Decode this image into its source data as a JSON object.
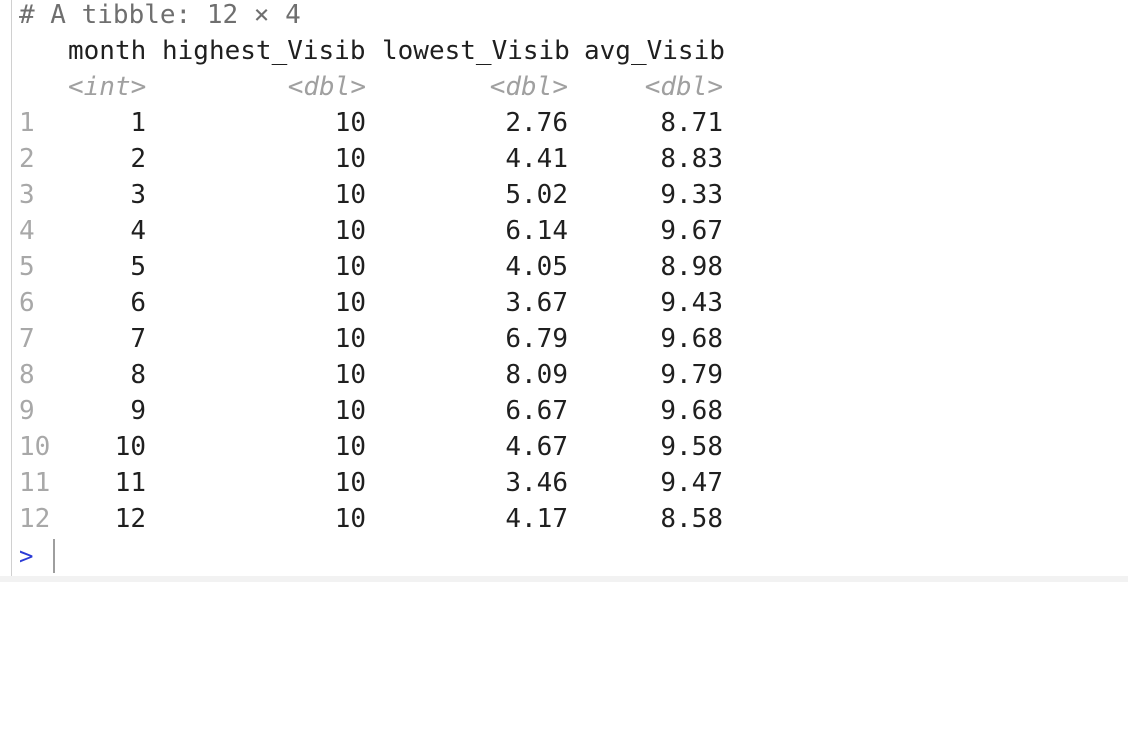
{
  "console": {
    "comment": "# A tibble: 12 × 4",
    "headers": {
      "month": "month",
      "highest": "highest_Visib",
      "lowest": "lowest_Visib",
      "avg": "avg_Visib"
    },
    "types": {
      "month": "<int>",
      "highest": "<dbl>",
      "lowest": "<dbl>",
      "avg": "<dbl>"
    },
    "rows": [
      {
        "n": "1",
        "month": "1",
        "highest": "10",
        "lowest": "2.76",
        "avg": "8.71"
      },
      {
        "n": "2",
        "month": "2",
        "highest": "10",
        "lowest": "4.41",
        "avg": "8.83"
      },
      {
        "n": "3",
        "month": "3",
        "highest": "10",
        "lowest": "5.02",
        "avg": "9.33"
      },
      {
        "n": "4",
        "month": "4",
        "highest": "10",
        "lowest": "6.14",
        "avg": "9.67"
      },
      {
        "n": "5",
        "month": "5",
        "highest": "10",
        "lowest": "4.05",
        "avg": "8.98"
      },
      {
        "n": "6",
        "month": "6",
        "highest": "10",
        "lowest": "3.67",
        "avg": "9.43"
      },
      {
        "n": "7",
        "month": "7",
        "highest": "10",
        "lowest": "6.79",
        "avg": "9.68"
      },
      {
        "n": "8",
        "month": "8",
        "highest": "10",
        "lowest": "8.09",
        "avg": "9.79"
      },
      {
        "n": "9",
        "month": "9",
        "highest": "10",
        "lowest": "6.67",
        "avg": "9.68"
      },
      {
        "n": "10",
        "month": "10",
        "highest": "10",
        "lowest": "4.67",
        "avg": "9.58"
      },
      {
        "n": "11",
        "month": "11",
        "highest": "10",
        "lowest": "3.46",
        "avg": "9.47"
      },
      {
        "n": "12",
        "month": "12",
        "highest": "10",
        "lowest": "4.17",
        "avg": "8.58"
      }
    ],
    "prompt": ">"
  }
}
